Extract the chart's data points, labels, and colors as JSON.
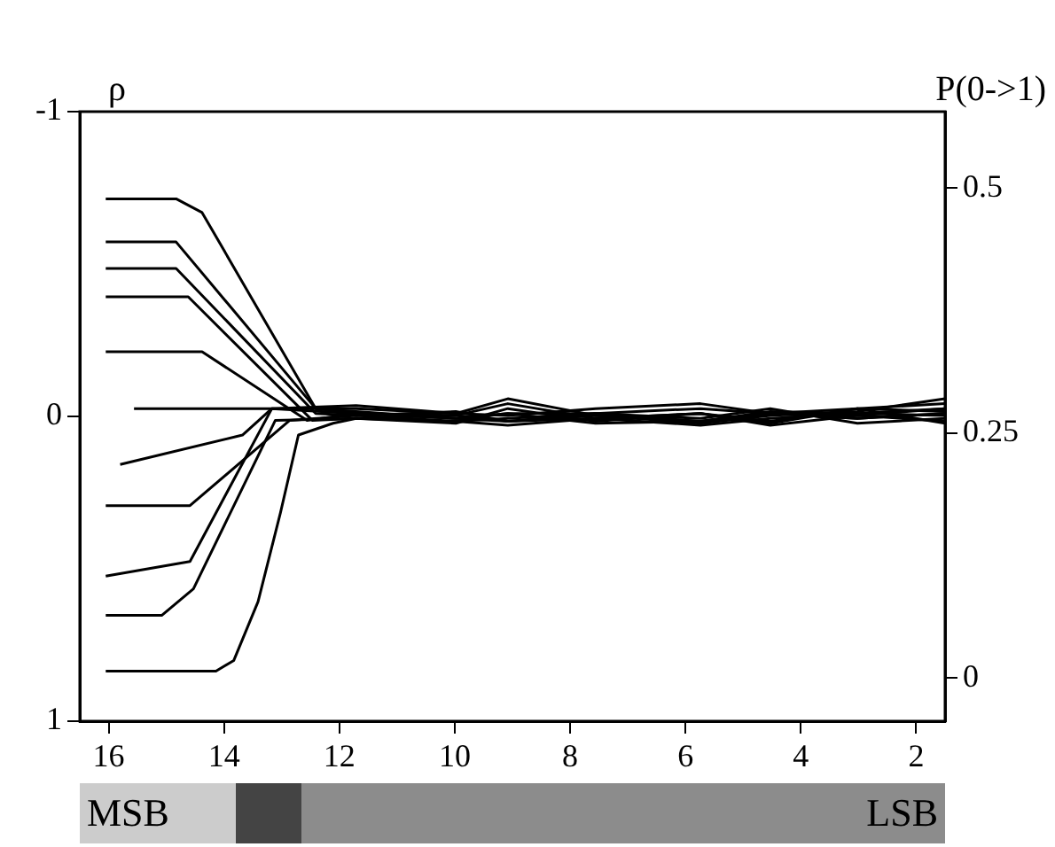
{
  "chart_data": {
    "type": "line",
    "ylabel": "ρ",
    "y2label": "P(0->1)",
    "xlim": [
      16.5,
      1.5
    ],
    "xticks": [
      16,
      14,
      12,
      10,
      8,
      6,
      4,
      2
    ],
    "ylim": [
      1,
      -1
    ],
    "yticks": [
      -1,
      0,
      1
    ],
    "y2lim": [
      -0.044,
      0.578
    ],
    "y2ticks": [
      0,
      0.25,
      0.5
    ],
    "grid": false,
    "legend": false,
    "marker": "none",
    "line_style": "solid",
    "annotations": [
      "MSB",
      "LSB"
    ],
    "series": [
      {
        "color": "#000000",
        "axis": "y2",
        "x": [
          16.05,
          14.83,
          14.38,
          12.41,
          11.71,
          9.98,
          9.08,
          7.56,
          5.74,
          4.53,
          3.02,
          1.5
        ],
        "values": [
          0.489,
          0.489,
          0.475,
          0.275,
          0.27,
          0.268,
          0.28,
          0.265,
          0.27,
          0.262,
          0.275,
          0.28
        ]
      },
      {
        "color": "#000000",
        "axis": "y2",
        "x": [
          16.05,
          14.83,
          12.41,
          11.71,
          9.98,
          9.08,
          7.56,
          5.74,
          4.53,
          3.02,
          1.5
        ],
        "values": [
          0.445,
          0.445,
          0.275,
          0.272,
          0.265,
          0.27,
          0.27,
          0.275,
          0.27,
          0.265,
          0.27
        ]
      },
      {
        "color": "#000000",
        "axis": "y2",
        "x": [
          16.05,
          14.83,
          12.41,
          11.71,
          9.98,
          9.08,
          7.56,
          5.74,
          4.53,
          3.02,
          1.5
        ],
        "values": [
          0.418,
          0.418,
          0.27,
          0.268,
          0.272,
          0.262,
          0.268,
          0.26,
          0.268,
          0.272,
          0.285
        ]
      },
      {
        "color": "#000000",
        "axis": "y2",
        "x": [
          16.05,
          14.62,
          12.47,
          11.71,
          9.98,
          9.08,
          7.56,
          5.74,
          4.53,
          3.02,
          1.5
        ],
        "values": [
          0.389,
          0.389,
          0.263,
          0.265,
          0.26,
          0.275,
          0.262,
          0.27,
          0.26,
          0.275,
          0.272
        ]
      },
      {
        "color": "#000000",
        "axis": "y2",
        "x": [
          16.05,
          14.38,
          12.56,
          11.71,
          9.98,
          9.08,
          7.56,
          5.74,
          4.53,
          3.02,
          1.5
        ],
        "values": [
          0.333,
          0.333,
          0.263,
          0.27,
          0.265,
          0.262,
          0.27,
          0.265,
          0.275,
          0.26,
          0.265
        ]
      },
      {
        "color": "#000000",
        "axis": "y2",
        "x": [
          15.56,
          11.71,
          9.98,
          9.08,
          7.56,
          5.74,
          4.53,
          3.02,
          1.5
        ],
        "values": [
          0.275,
          0.275,
          0.27,
          0.268,
          0.275,
          0.28,
          0.27,
          0.268,
          0.275
        ]
      },
      {
        "color": "#000000",
        "axis": "y2",
        "x": [
          15.8,
          13.68,
          13.17,
          11.71,
          9.98,
          9.08,
          7.56,
          5.74,
          4.53,
          3.02,
          1.5
        ],
        "values": [
          0.218,
          0.248,
          0.275,
          0.278,
          0.27,
          0.285,
          0.268,
          0.262,
          0.27,
          0.265,
          0.27
        ]
      },
      {
        "color": "#000000",
        "axis": "y2",
        "x": [
          16.05,
          14.59,
          12.86,
          11.71,
          9.98,
          9.08,
          7.56,
          5.74,
          4.53,
          3.02,
          1.5
        ],
        "values": [
          0.176,
          0.176,
          0.263,
          0.268,
          0.262,
          0.258,
          0.265,
          0.27,
          0.258,
          0.268,
          0.262
        ]
      },
      {
        "color": "#000000",
        "axis": "y2",
        "x": [
          16.05,
          14.59,
          13.17,
          11.71,
          9.98,
          9.08,
          7.56,
          5.74,
          4.53,
          3.02,
          1.5
        ],
        "values": [
          0.104,
          0.119,
          0.275,
          0.27,
          0.265,
          0.27,
          0.26,
          0.262,
          0.272,
          0.27,
          0.268
        ]
      },
      {
        "color": "#000000",
        "axis": "y2",
        "x": [
          16.05,
          15.08,
          14.53,
          13.11,
          11.71,
          9.98,
          9.08,
          7.56,
          5.74,
          4.53,
          3.02,
          1.5
        ],
        "values": [
          0.064,
          0.064,
          0.091,
          0.263,
          0.265,
          0.268,
          0.262,
          0.265,
          0.258,
          0.265,
          0.27,
          0.275
        ]
      },
      {
        "color": "#000000",
        "axis": "y2",
        "x": [
          16.05,
          14.14,
          13.83,
          13.41,
          13.02,
          12.71,
          12.11,
          11.71,
          9.98,
          9.08,
          7.56,
          5.74,
          4.53,
          3.02,
          1.5
        ],
        "values": [
          0.007,
          0.007,
          0.018,
          0.078,
          0.169,
          0.248,
          0.26,
          0.265,
          0.262,
          0.265,
          0.27,
          0.262,
          0.27,
          0.275,
          0.26
        ]
      }
    ]
  }
}
